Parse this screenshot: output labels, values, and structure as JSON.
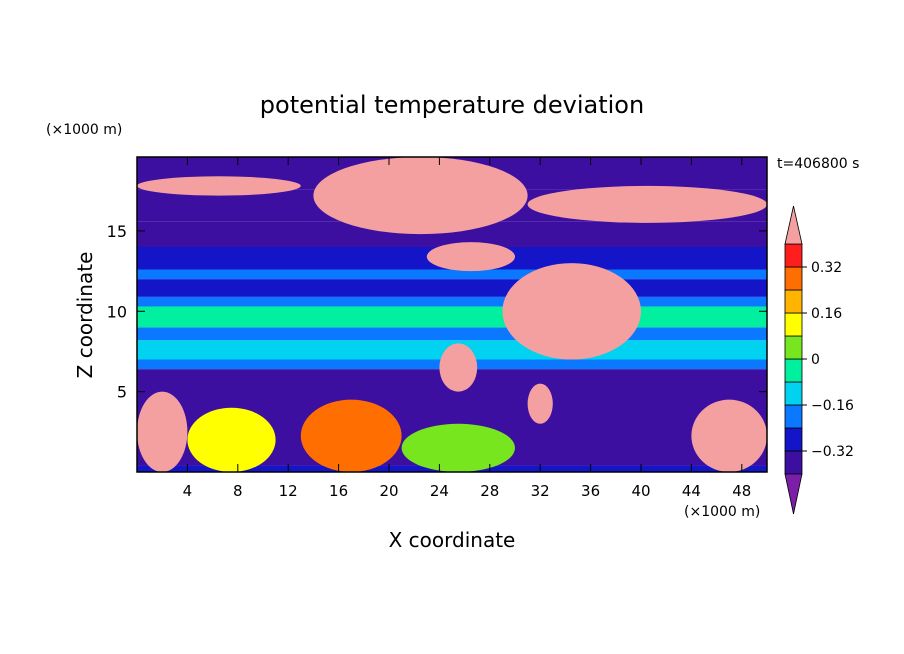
{
  "chart_data": {
    "type": "heatmap",
    "title": "potential temperature deviation",
    "xlabel": "X coordinate",
    "ylabel": "Z coordinate",
    "x_unit": "(×1000 m)",
    "y_unit": "(×1000 m)",
    "time_label": "t=406800 s",
    "xlim": [
      0,
      50
    ],
    "ylim": [
      0,
      19.6
    ],
    "x_ticks": [
      4,
      8,
      12,
      16,
      20,
      24,
      28,
      32,
      36,
      40,
      44,
      48
    ],
    "y_ticks": [
      5,
      10,
      15
    ],
    "colorbar": {
      "levels": [
        -0.4,
        -0.32,
        -0.24,
        -0.16,
        -0.08,
        0,
        0.08,
        0.16,
        0.24,
        0.32,
        0.4
      ],
      "tick_labels": [
        "0.32",
        "0.16",
        "0",
        "−0.16",
        "−0.32"
      ],
      "tick_values": [
        0.32,
        0.16,
        0,
        -0.16,
        -0.32
      ],
      "colors": [
        "#7b1fa8",
        "#3c0fa0",
        "#1414c8",
        "#0a78ff",
        "#00d2f0",
        "#00f0a0",
        "#78e61e",
        "#ffff00",
        "#ffb400",
        "#ff6e00",
        "#ff1e1e",
        "#f4a0a0"
      ],
      "extend": "both"
    },
    "layers": [
      {
        "z": [
          0.0,
          0.4
        ],
        "value": -0.28
      },
      {
        "z": [
          0.4,
          6.4
        ],
        "value": -0.36
      },
      {
        "z": [
          6.4,
          7.0
        ],
        "value": -0.2
      },
      {
        "z": [
          7.0,
          8.2
        ],
        "value": -0.12
      },
      {
        "z": [
          8.2,
          9.0
        ],
        "value": -0.2
      },
      {
        "z": [
          9.0,
          10.3
        ],
        "value": -0.05
      },
      {
        "z": [
          10.3,
          10.9
        ],
        "value": -0.2
      },
      {
        "z": [
          10.9,
          12.0
        ],
        "value": -0.32
      },
      {
        "z": [
          12.0,
          12.6
        ],
        "value": -0.2
      },
      {
        "z": [
          12.6,
          14.0
        ],
        "value": -0.28
      },
      {
        "z": [
          14.0,
          15.6
        ],
        "value": -0.36
      },
      {
        "z": [
          15.6,
          17.6
        ],
        "value": -0.36
      },
      {
        "z": [
          17.6,
          19.6
        ],
        "value": -0.36
      }
    ],
    "anomalies": [
      {
        "x": [
          0,
          4
        ],
        "z": [
          0,
          5
        ],
        "value": 0.44
      },
      {
        "x": [
          4,
          11
        ],
        "z": [
          0,
          4
        ],
        "value": 0.12
      },
      {
        "x": [
          13,
          21
        ],
        "z": [
          0,
          4.5
        ],
        "value": 0.26
      },
      {
        "x": [
          21,
          30
        ],
        "z": [
          0,
          3
        ],
        "value": 0.02
      },
      {
        "x": [
          44,
          50
        ],
        "z": [
          0,
          4.5
        ],
        "value": 0.44
      },
      {
        "x": [
          14,
          31
        ],
        "z": [
          14.8,
          19.6
        ],
        "value": 0.44
      },
      {
        "x": [
          31,
          50
        ],
        "z": [
          15.5,
          17.8
        ],
        "value": 0.44
      },
      {
        "x": [
          0,
          13
        ],
        "z": [
          17.2,
          18.4
        ],
        "value": 0.44
      },
      {
        "x": [
          23,
          30
        ],
        "z": [
          12.5,
          14.3
        ],
        "value": 0.44
      },
      {
        "x": [
          29,
          40
        ],
        "z": [
          7,
          13
        ],
        "value": 0.44
      },
      {
        "x": [
          24,
          27
        ],
        "z": [
          5,
          8
        ],
        "value": 0.44
      },
      {
        "x": [
          31,
          33
        ],
        "z": [
          3,
          5.5
        ],
        "value": 0.44
      }
    ]
  }
}
